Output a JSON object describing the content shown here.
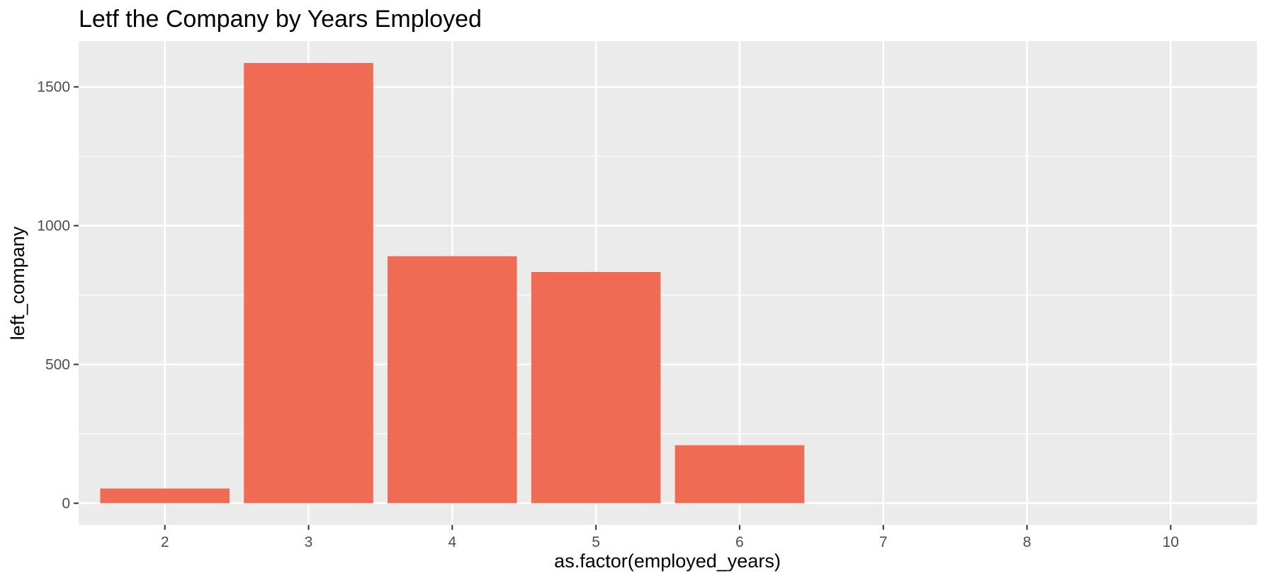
{
  "chart_data": {
    "type": "bar",
    "title": "Letf the Company by Years Employed",
    "xlabel": "as.factor(employed_years)",
    "ylabel": "left_company",
    "categories": [
      "2",
      "3",
      "4",
      "5",
      "6",
      "7",
      "8",
      "10"
    ],
    "values": [
      53,
      1586,
      890,
      833,
      209,
      0,
      0,
      0
    ],
    "ylim": [
      -78,
      1665
    ],
    "yticks": [
      0,
      500,
      1000,
      1500
    ],
    "grid": true,
    "legend": "none",
    "colors": {
      "bar": "#EF6B53",
      "panel": "#EBEBEB",
      "grid": "#FFFFFF",
      "tick_text": "#4D4D4D"
    }
  }
}
